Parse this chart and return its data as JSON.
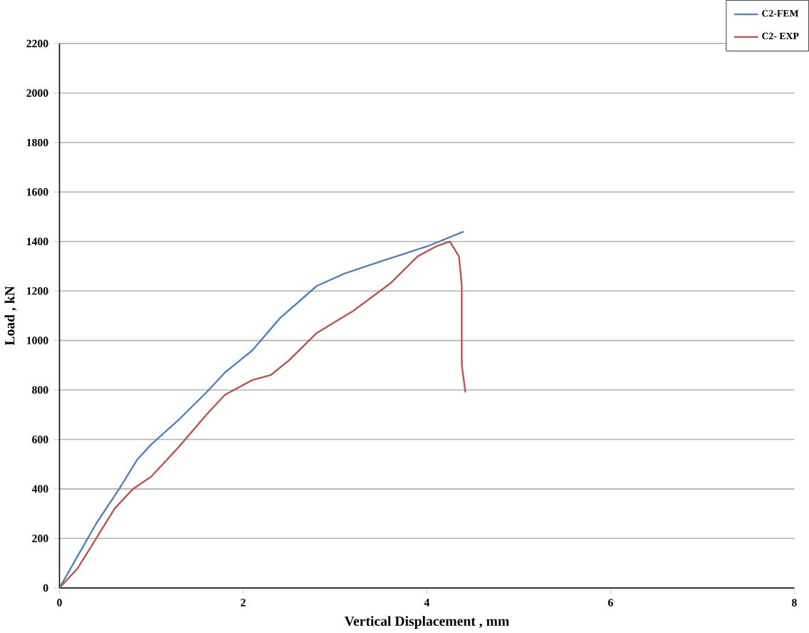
{
  "chart_data": {
    "type": "line",
    "xlabel": "Vertical Displacement , mm",
    "ylabel": "Load , kN",
    "xlim": [
      0,
      8
    ],
    "xticks": [
      0,
      2,
      4,
      6,
      8
    ],
    "ylim": [
      0,
      2200
    ],
    "yticks": [
      0,
      200,
      400,
      600,
      800,
      1000,
      1200,
      1400,
      1600,
      1800,
      2000,
      2200
    ],
    "grid": "y",
    "legend": "top right",
    "marker": "none",
    "line_style": "solid",
    "series": [
      {
        "name": "C2-FEM",
        "color": "#4f81bd",
        "x": [
          0,
          0.2,
          0.4,
          0.65,
          0.85,
          1,
          1.3,
          1.6,
          1.8,
          2.1,
          2.4,
          2.8,
          3.1,
          3.5,
          4.0,
          4.4
        ],
        "values": [
          0,
          130,
          260,
          400,
          520,
          580,
          680,
          790,
          870,
          960,
          1090,
          1220,
          1270,
          1320,
          1380,
          1440
        ]
      },
      {
        "name": "C2- EXP",
        "color": "#c0504d",
        "x": [
          0,
          0.2,
          0.4,
          0.6,
          0.8,
          1.0,
          1.3,
          1.6,
          1.8,
          2.1,
          2.3,
          2.5,
          2.8,
          3.2,
          3.6,
          3.9,
          4.1,
          4.25,
          4.35,
          4.38,
          4.38,
          4.42
        ],
        "values": [
          0,
          80,
          200,
          320,
          400,
          450,
          570,
          700,
          780,
          840,
          860,
          920,
          1030,
          1120,
          1230,
          1340,
          1380,
          1400,
          1340,
          1220,
          900,
          790
        ]
      }
    ]
  }
}
